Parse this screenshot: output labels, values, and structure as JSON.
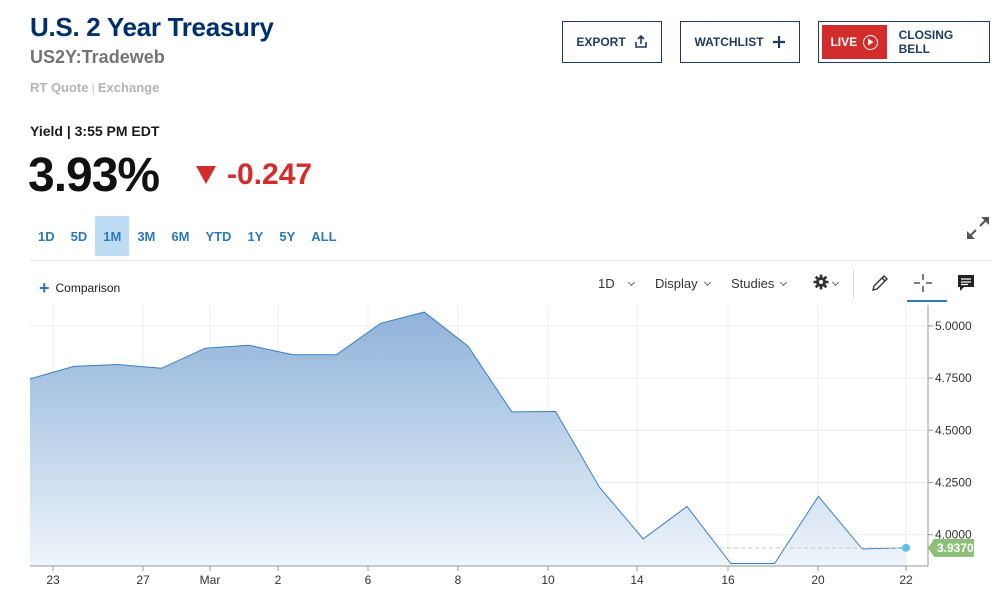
{
  "header": {
    "title": "U.S. 2 Year Treasury",
    "symbol": "US2Y:Tradeweb",
    "quote_type": "RT Quote",
    "quote_source": "Exchange"
  },
  "actions": {
    "export_label": "EXPORT",
    "watchlist_label": "WATCHLIST",
    "live_label": "LIVE",
    "closing_bell_label": "CLOSING BELL"
  },
  "quote": {
    "yield_label": "Yield | 3:55 PM EDT",
    "price": "3.93%",
    "change": "-0.247"
  },
  "ranges": [
    "1D",
    "5D",
    "1M",
    "3M",
    "6M",
    "YTD",
    "1Y",
    "5Y",
    "ALL"
  ],
  "active_range": "1M",
  "toolbar": {
    "comparison_label": "Comparison",
    "interval_label": "1D",
    "display_label": "Display",
    "studies_label": "Studies"
  },
  "icons": {
    "export": "share-icon",
    "watchlist": "plus-icon",
    "live": "play-icon",
    "expand": "expand-icon",
    "settings": "gear-icon",
    "draw": "pencil-icon",
    "crosshair": "crosshair-icon",
    "comments": "comment-icon"
  },
  "colors": {
    "brand": "#002f6c",
    "accent": "#2c78b8",
    "negative": "#d32c2c",
    "last_value_badge": "#8cc079",
    "area_top": "#8fb3d9"
  },
  "chart_data": {
    "type": "area",
    "x_labels": [
      "23",
      "27",
      "Mar",
      "2",
      "6",
      "8",
      "10",
      "14",
      "16",
      "20",
      "22"
    ],
    "y_ticks": [
      "5.0000",
      "4.7500",
      "4.5000",
      "4.2500",
      "4.0000"
    ],
    "ylim": [
      3.85,
      5.1
    ],
    "series": [
      {
        "values": [
          4.746,
          4.806,
          4.815,
          4.797,
          4.893,
          4.907,
          4.862,
          4.862,
          5.012,
          5.066,
          4.903,
          4.588,
          4.59,
          4.228,
          3.98,
          4.135,
          3.862,
          3.862,
          4.184,
          3.932,
          3.937
        ]
      }
    ],
    "last_value": "3.9370",
    "grid": true
  }
}
